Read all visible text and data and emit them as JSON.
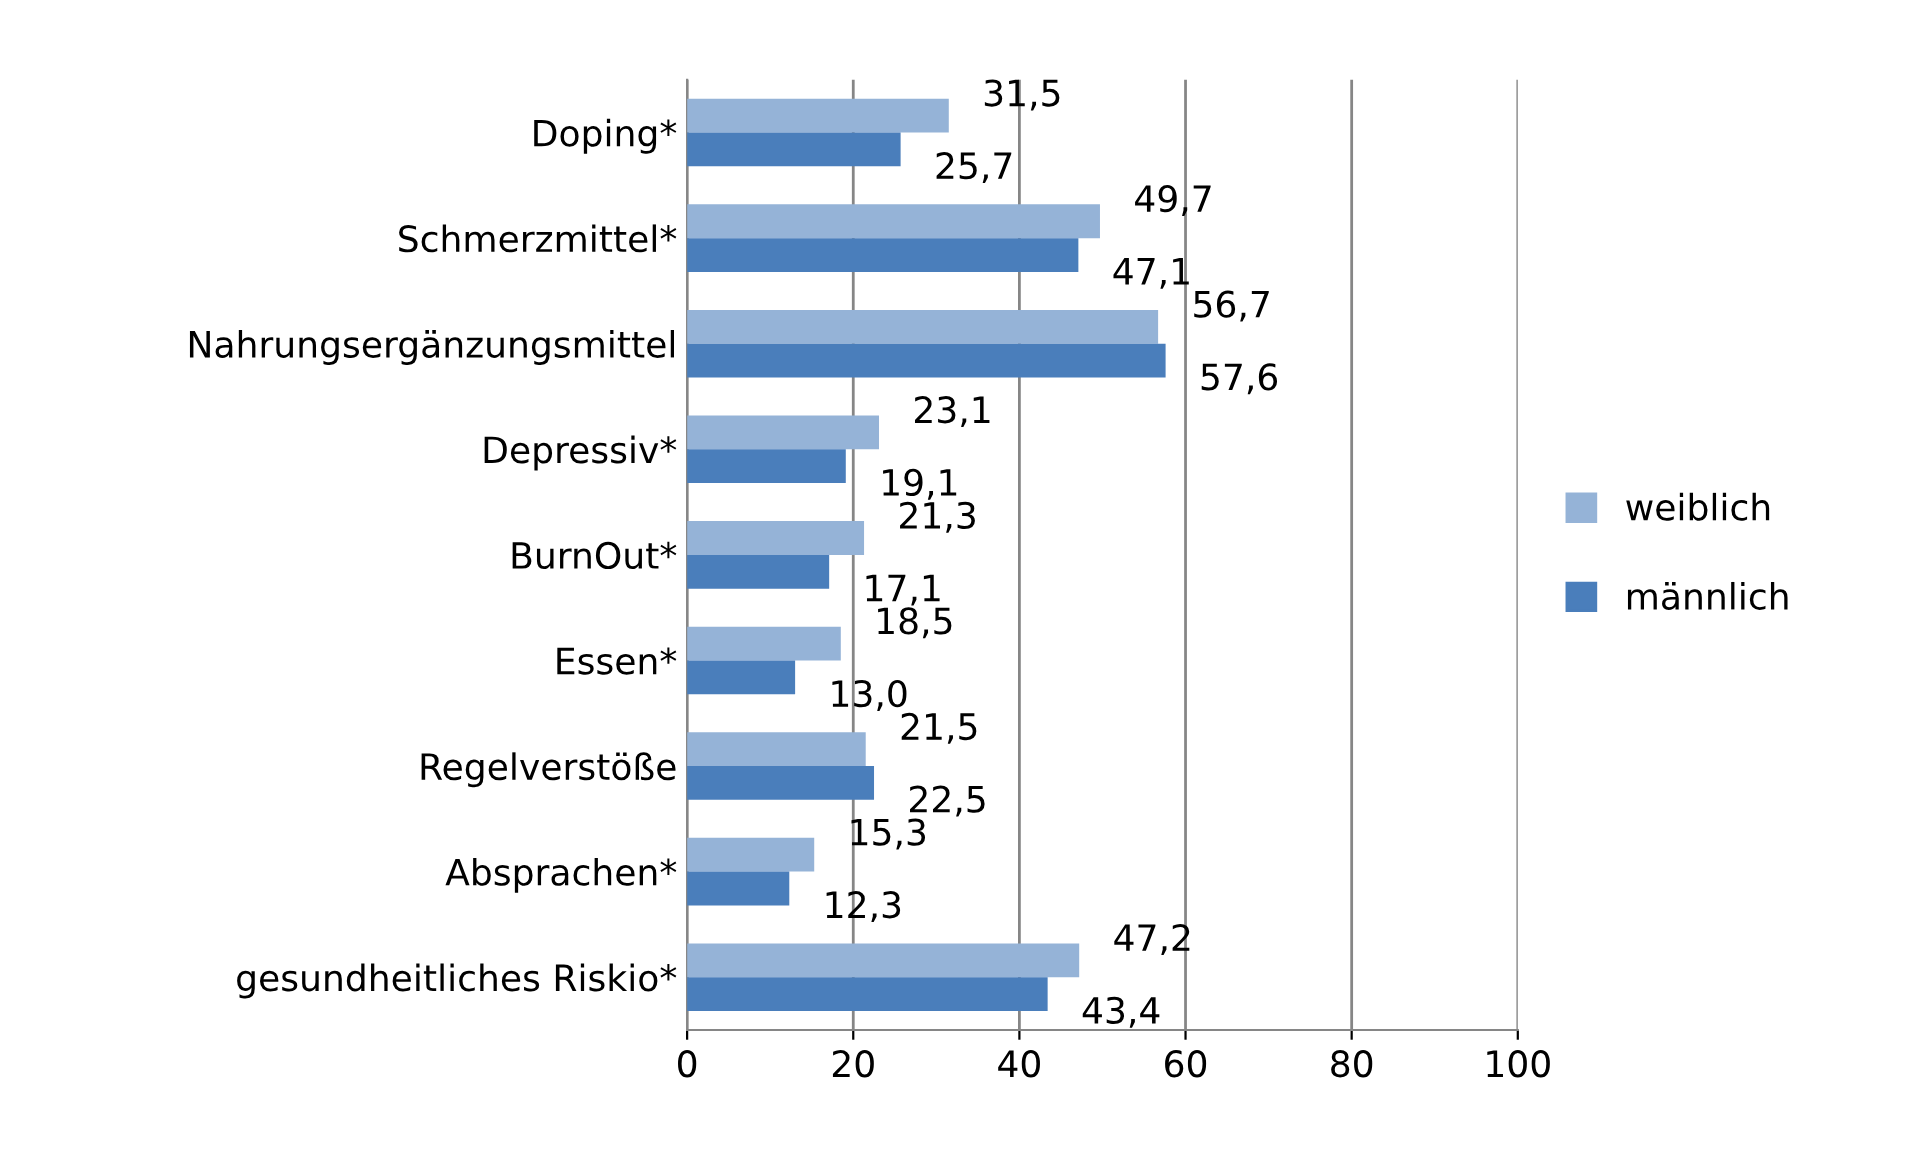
{
  "chart_data": {
    "type": "bar",
    "orientation": "horizontal",
    "categories": [
      "Doping*",
      "Schmerzmittel*",
      "Nahrungsergänzungsmittel",
      "Depressiv*",
      "BurnOut*",
      "Essen*",
      "Regelverstöße",
      "Absprachen*",
      "gesundheitliches Riskio*"
    ],
    "series": [
      {
        "name": "weiblich",
        "color": "#95b3d7",
        "values": [
          31.5,
          49.7,
          56.7,
          23.1,
          21.3,
          18.5,
          21.5,
          15.3,
          47.2
        ],
        "value_labels": [
          "31,5",
          "49,7",
          "56,7",
          "23,1",
          "21,3",
          "18,5",
          "21,5",
          "15,3",
          "47,2"
        ]
      },
      {
        "name": "männlich",
        "color": "#4a7ebb",
        "values": [
          25.7,
          47.1,
          57.6,
          19.1,
          17.1,
          13.0,
          22.5,
          12.3,
          43.4
        ],
        "value_labels": [
          "25,7",
          "47,1",
          "57,6",
          "19,1",
          "17,1",
          "13,0",
          "22,5",
          "12,3",
          "43,4"
        ]
      }
    ],
    "xlim": [
      0,
      100
    ],
    "xticks": [
      0,
      20,
      40,
      60,
      80,
      100
    ],
    "grid": "x",
    "legend": "right"
  }
}
